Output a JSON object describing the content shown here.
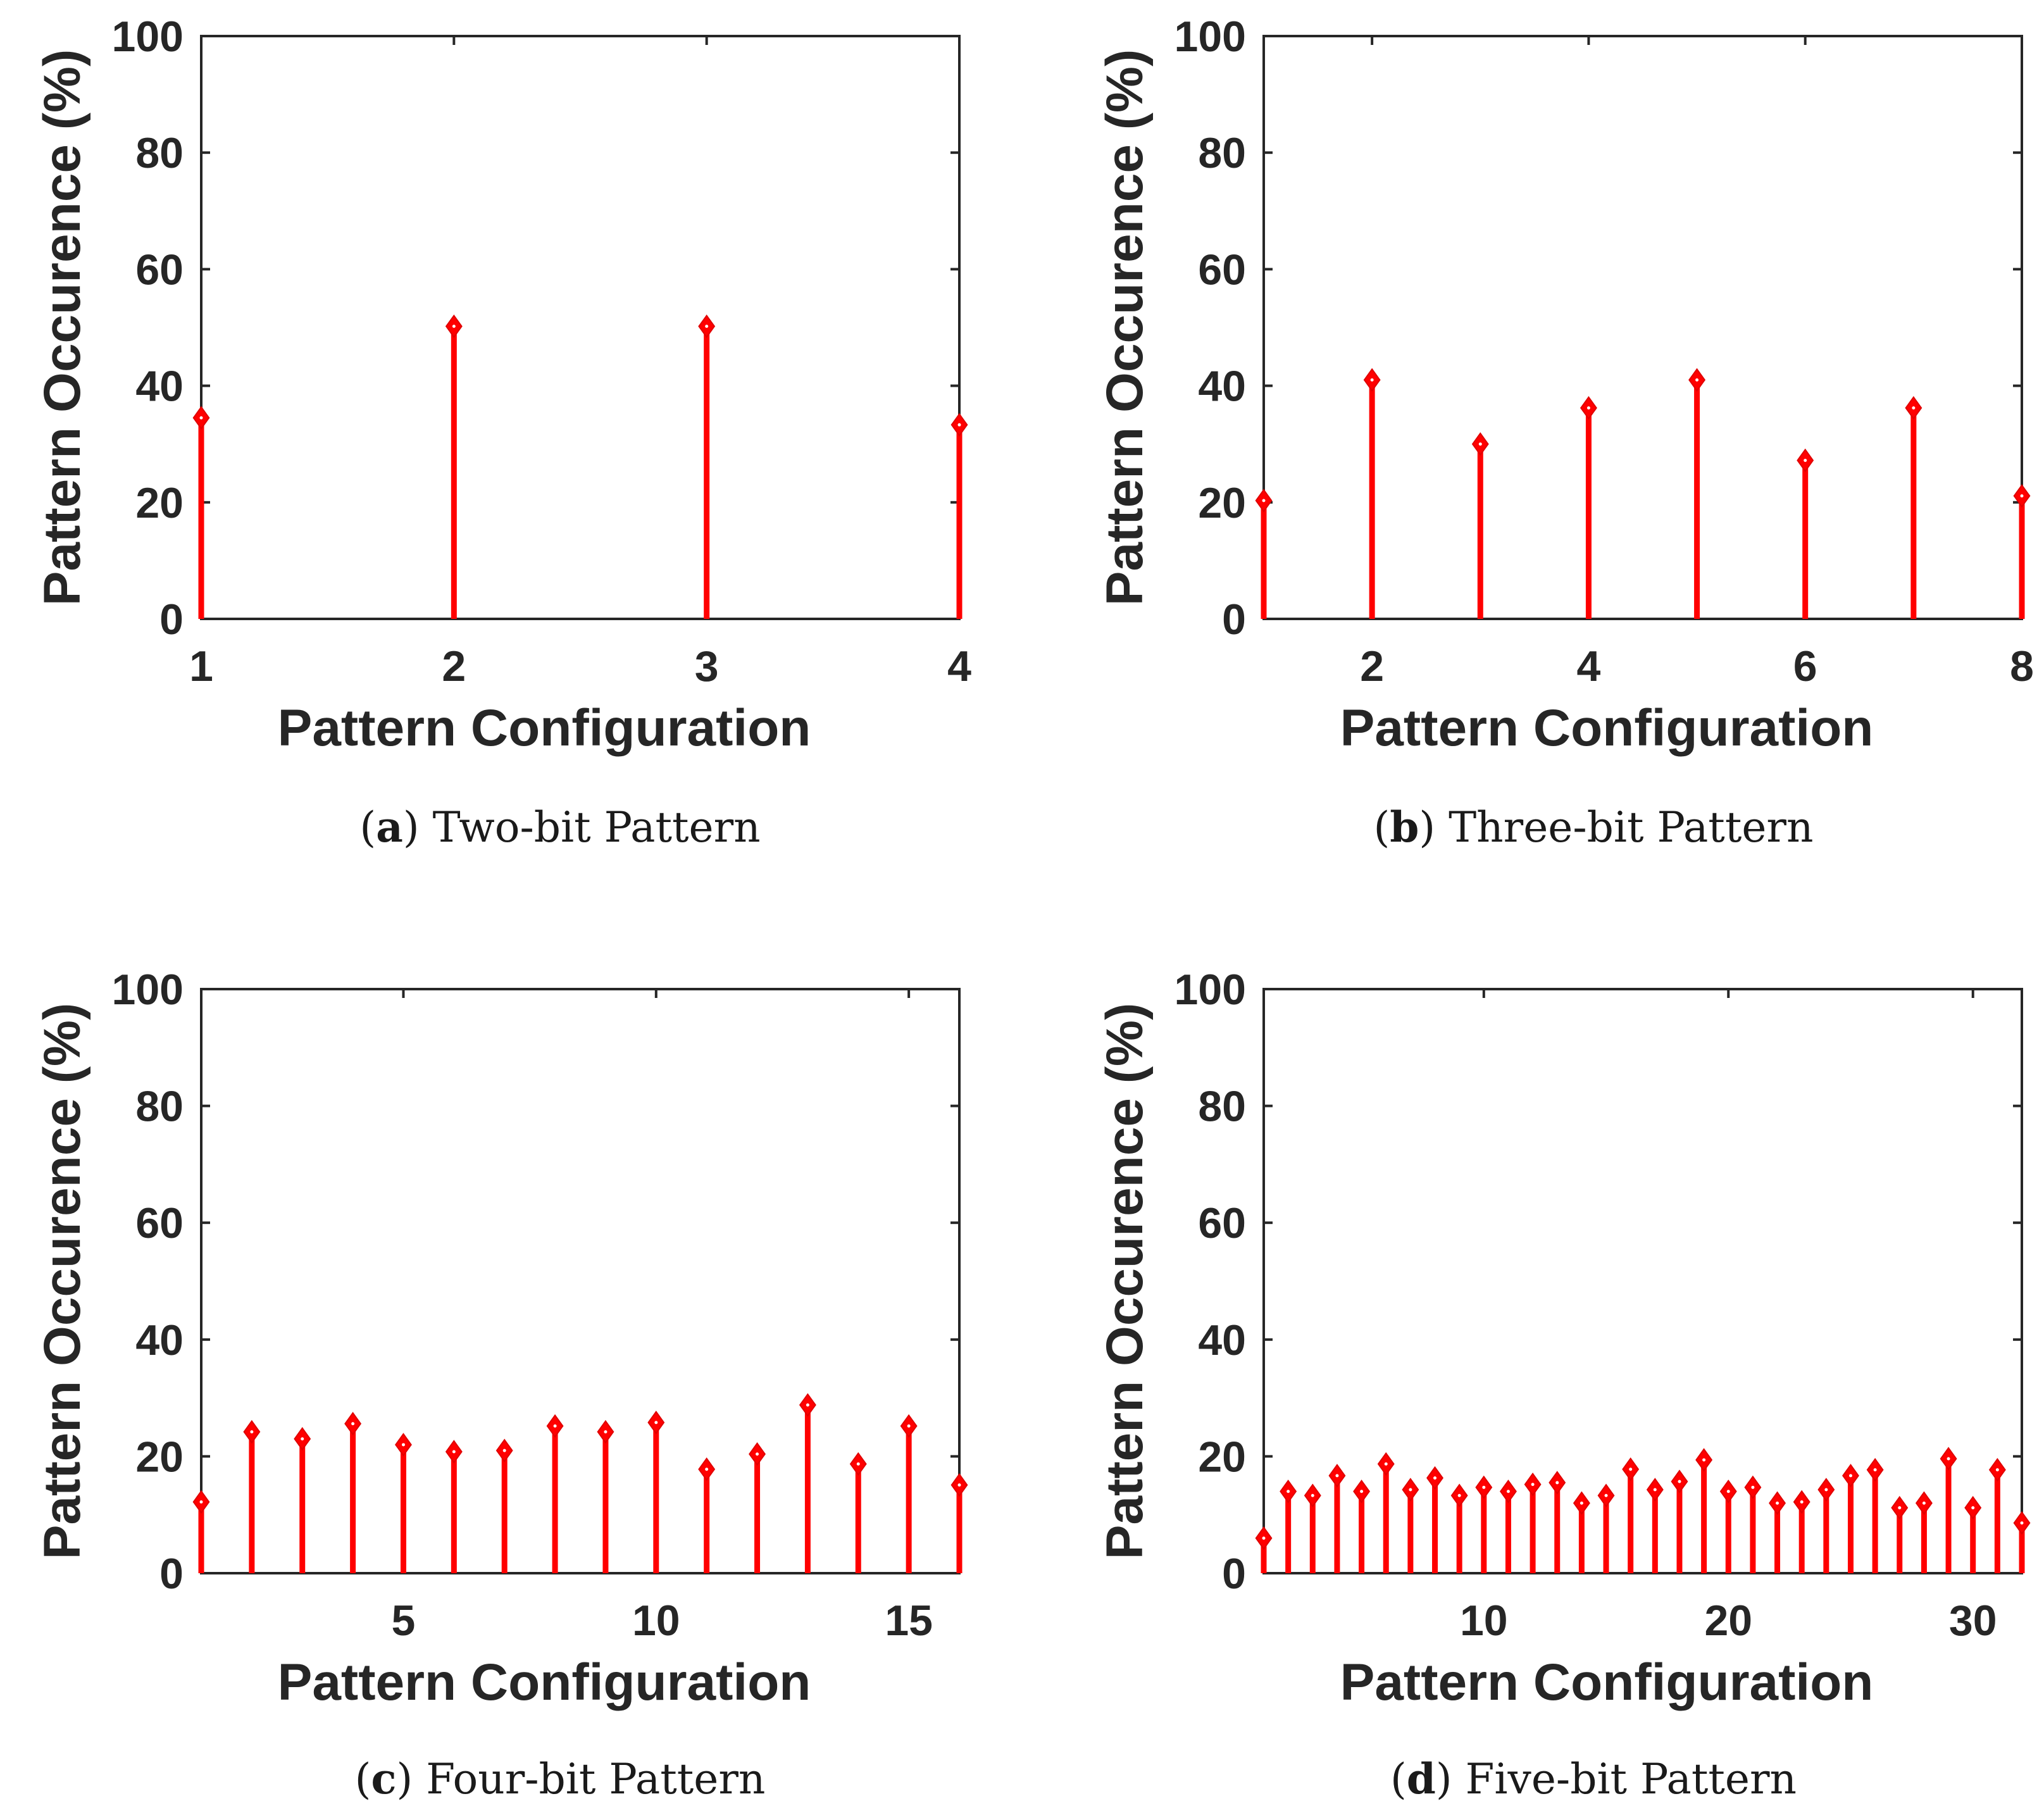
{
  "figure": {
    "panels": [
      {
        "letter": "a",
        "caption_text": "Two-bit Pattern"
      },
      {
        "letter": "b",
        "caption_text": "Three-bit Pattern"
      },
      {
        "letter": "c",
        "caption_text": "Four-bit Pattern"
      },
      {
        "letter": "d",
        "caption_text": "Five-bit Pattern"
      }
    ]
  },
  "chart_data": [
    {
      "type": "stem",
      "title": "",
      "caption": "(a) Two-bit Pattern",
      "xlabel": "Pattern Configuration",
      "ylabel": "Pattern Occurence (%)",
      "xlim": [
        1,
        4
      ],
      "ylim": [
        0,
        100
      ],
      "xticks": [
        1,
        2,
        3,
        4
      ],
      "yticks": [
        0,
        20,
        40,
        60,
        80,
        100
      ],
      "x": [
        1,
        2,
        3,
        4
      ],
      "values": [
        34.5,
        50.2,
        50.2,
        33.3
      ],
      "color": "#ff0000",
      "marker": "diamond"
    },
    {
      "type": "stem",
      "title": "",
      "caption": "(b) Three-bit Pattern",
      "xlabel": "Pattern Configuration",
      "ylabel": "Pattern Occurence (%)",
      "xlim": [
        1,
        8
      ],
      "ylim": [
        0,
        100
      ],
      "xticks": [
        2,
        4,
        6,
        8
      ],
      "yticks": [
        0,
        20,
        40,
        60,
        80,
        100
      ],
      "x": [
        1,
        2,
        3,
        4,
        5,
        6,
        7,
        8
      ],
      "values": [
        20.3,
        41.0,
        30.0,
        36.2,
        41.0,
        27.2,
        36.2,
        21.1
      ],
      "color": "#ff0000",
      "marker": "diamond"
    },
    {
      "type": "stem",
      "title": "",
      "caption": "(c) Four-bit Pattern",
      "xlabel": "Pattern Configuration",
      "ylabel": "Pattern Occurence (%)",
      "xlim": [
        1,
        16
      ],
      "ylim": [
        0,
        100
      ],
      "xticks": [
        5,
        10,
        15
      ],
      "yticks": [
        0,
        20,
        40,
        60,
        80,
        100
      ],
      "x": [
        1,
        2,
        3,
        4,
        5,
        6,
        7,
        8,
        9,
        10,
        11,
        12,
        13,
        14,
        15,
        16
      ],
      "values": [
        12.2,
        24.2,
        23.0,
        25.6,
        22.0,
        20.8,
        21.0,
        25.2,
        24.2,
        25.8,
        17.8,
        20.4,
        28.8,
        18.7,
        25.2,
        15.1
      ],
      "color": "#ff0000",
      "marker": "diamond"
    },
    {
      "type": "stem",
      "title": "",
      "caption": "(d) Five-bit Pattern",
      "xlabel": "Pattern Configuration",
      "ylabel": "Pattern Occurence (%)",
      "xlim": [
        1,
        32
      ],
      "ylim": [
        0,
        100
      ],
      "xticks": [
        10,
        20,
        30
      ],
      "yticks": [
        0,
        20,
        40,
        60,
        80,
        100
      ],
      "x": [
        1,
        2,
        3,
        4,
        5,
        6,
        7,
        8,
        9,
        10,
        11,
        12,
        13,
        14,
        15,
        16,
        17,
        18,
        19,
        20,
        21,
        22,
        23,
        24,
        25,
        26,
        27,
        28,
        29,
        30,
        31,
        32
      ],
      "values": [
        6.0,
        14.0,
        13.3,
        16.7,
        14.0,
        18.7,
        14.3,
        16.3,
        13.3,
        14.7,
        14.0,
        15.2,
        15.5,
        12.0,
        13.3,
        17.8,
        14.3,
        15.7,
        19.4,
        14.0,
        14.7,
        12.0,
        12.2,
        14.3,
        16.7,
        17.7,
        11.2,
        12.0,
        19.6,
        11.2,
        17.7,
        8.6
      ],
      "color": "#ff0000",
      "marker": "diamond"
    }
  ]
}
